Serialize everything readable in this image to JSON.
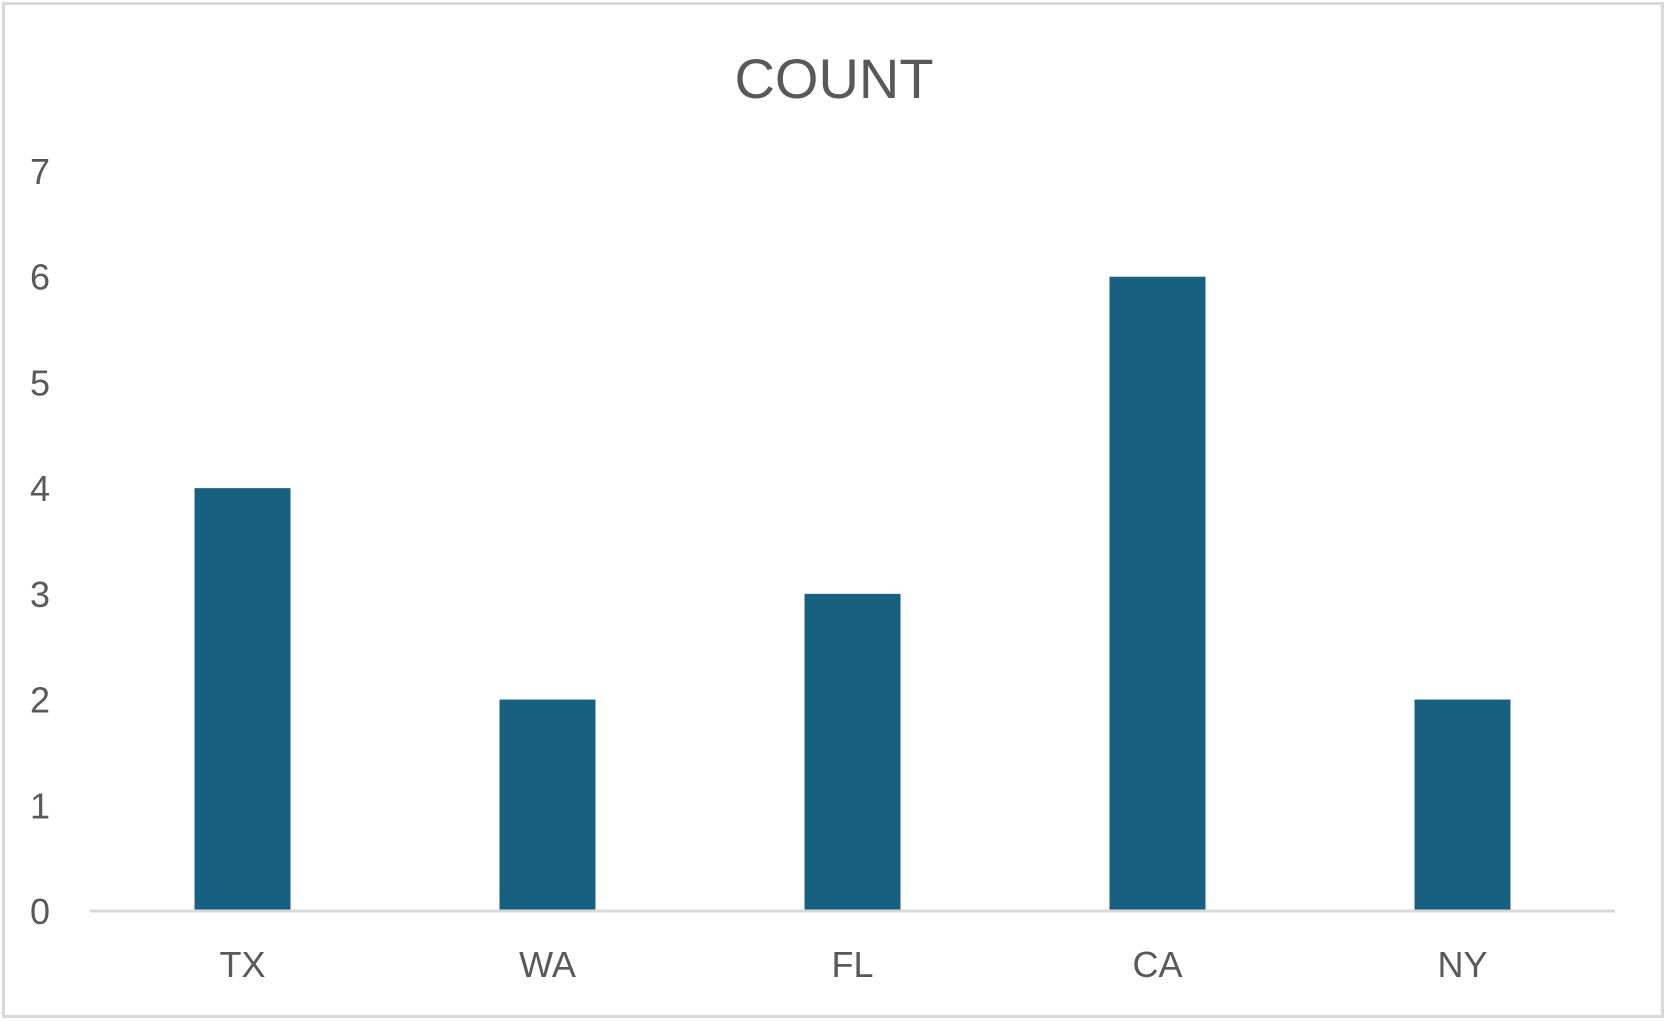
{
  "chart_data": {
    "type": "bar",
    "title": "COUNT",
    "categories": [
      "TX",
      "WA",
      "FL",
      "CA",
      "NY"
    ],
    "values": [
      4,
      2,
      3,
      6,
      2
    ],
    "xlabel": "",
    "ylabel": "",
    "ylim": [
      0,
      7
    ],
    "yticks": [
      "0",
      "1",
      "2",
      "3",
      "4",
      "5",
      "6",
      "7"
    ],
    "grid": false,
    "legend": "none",
    "bar_color": "#17607f",
    "axis_color": "#d9d9d9",
    "text_color": "#595959"
  }
}
